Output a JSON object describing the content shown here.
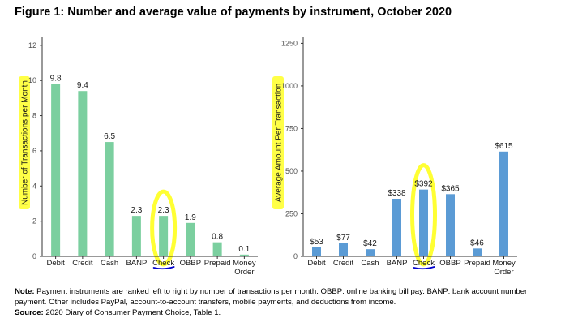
{
  "figure": {
    "title": "Figure 1: Number and average value of payments by instrument, October 2020"
  },
  "chart_data": [
    {
      "type": "bar",
      "categories": [
        "Debit",
        "Credit",
        "Cash",
        "BANP",
        "Check",
        "OBBP",
        "Prepaid",
        "Money Order"
      ],
      "values": [
        9.8,
        9.4,
        6.5,
        2.3,
        2.3,
        1.9,
        0.8,
        0.1
      ],
      "data_labels": [
        "9.8",
        "9.4",
        "6.5",
        "2.3",
        "2.3",
        "1.9",
        "0.8",
        "0.1"
      ],
      "ylabel": "Number of Transactions per Month",
      "ylim": [
        0,
        12.5
      ],
      "yticks": [
        "0",
        "2",
        "4",
        "6",
        "8",
        "10",
        "12"
      ],
      "ytick_values": [
        0,
        2,
        4,
        6,
        8,
        10,
        12
      ],
      "color": "#7bcf9f",
      "grid": false,
      "highlight_category": "Check"
    },
    {
      "type": "bar",
      "categories": [
        "Debit",
        "Credit",
        "Cash",
        "BANP",
        "Check",
        "OBBP",
        "Prepaid",
        "Money Order"
      ],
      "values": [
        53,
        77,
        42,
        338,
        392,
        365,
        46,
        615
      ],
      "data_labels": [
        "$53",
        "$77",
        "$42",
        "$338",
        "$392",
        "$365",
        "$46",
        "$615"
      ],
      "ylabel": "Average Amount Per Transaction",
      "ylim": [
        0,
        1290
      ],
      "yticks": [
        "0",
        "250",
        "500",
        "750",
        "1000",
        "1250"
      ],
      "ytick_values": [
        0,
        250,
        500,
        750,
        1000,
        1250
      ],
      "color": "#5b9bd5",
      "grid": false,
      "highlight_category": "Check"
    }
  ],
  "annotations": {
    "highlight_color": "#ffff33",
    "underline_color": "#0000cc"
  },
  "notes": {
    "note_label": "Note:",
    "note_text": " Payment instruments are ranked left to right by number of transactions per month. OBBP: online banking bill pay. BANP: bank account number payment. Other includes PayPal, account-to-account transfers, mobile payments, and deductions from income.",
    "source_label": "Source:",
    "source_text": " 2020 Diary of Consumer Payment Choice, Table 1."
  }
}
